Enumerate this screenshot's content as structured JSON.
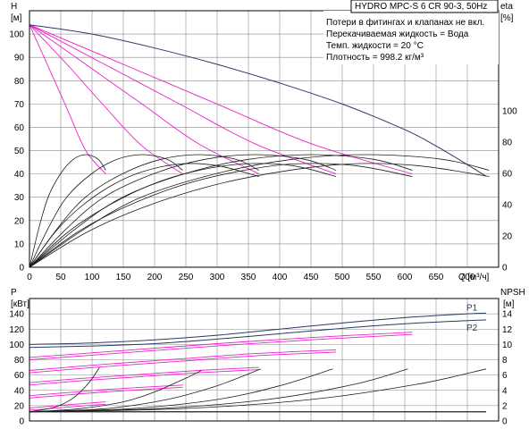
{
  "info": {
    "title": "HYDRO MPC-S 6 CR 90-3, 50Hz",
    "notes": [
      "Потери в фитингах и клапанах не вкл.",
      "Перекачиваемая жидкость = Вода",
      "Темп. жидкости = 20 °C",
      "Плотность = 998.2 кг/м³"
    ]
  },
  "colors": {
    "grid": "#8a8a8a",
    "system_curve": "#2b3a63",
    "stage_curve": "#ee22cc",
    "efficiency": "#1e1e1e",
    "npsh": "#1e1e1e",
    "power": "#2b3a63"
  },
  "chart_data": [
    {
      "type": "line",
      "name": "head-efficiency",
      "xlabel": "Q [м³/ч]",
      "ylabel_left": [
        "H",
        "[м]"
      ],
      "ylabel_right": [
        "eta",
        "[%]"
      ],
      "xlim": [
        0,
        750
      ],
      "ylim_left": [
        0,
        110
      ],
      "ylim_right": [
        0,
        100
      ],
      "x_ticks": [
        0,
        50,
        100,
        150,
        200,
        250,
        300,
        350,
        400,
        450,
        500,
        550,
        600,
        650,
        700
      ],
      "y_ticks_left": [
        0,
        10,
        20,
        30,
        40,
        50,
        60,
        70,
        80,
        90,
        100
      ],
      "y_ticks_right": [
        0,
        20,
        40,
        60,
        80,
        100
      ],
      "grid": true,
      "head_max_curve": {
        "x": [
          0,
          100,
          200,
          300,
          400,
          500,
          600,
          650,
          700,
          730
        ],
        "y": [
          104,
          100,
          94,
          87,
          79,
          70,
          59,
          52,
          44,
          39
        ]
      },
      "head_pump_curves": [
        {
          "x": [
            0,
            30,
            60,
            90,
            122
          ],
          "y": [
            104,
            86,
            68,
            50,
            40
          ]
        },
        {
          "x": [
            0,
            60,
            120,
            180,
            245
          ],
          "y": [
            104,
            87,
            69,
            52,
            40
          ]
        },
        {
          "x": [
            0,
            90,
            180,
            270,
            367
          ],
          "y": [
            104,
            87,
            70,
            53,
            40
          ]
        },
        {
          "x": [
            0,
            120,
            240,
            360,
            490
          ],
          "y": [
            104,
            87,
            70,
            53,
            40
          ]
        },
        {
          "x": [
            0,
            150,
            300,
            450,
            612
          ],
          "y": [
            104,
            87,
            70,
            53,
            40
          ]
        }
      ],
      "efficiency_curves": [
        {
          "x": [
            0,
            15,
            30,
            50,
            70,
            90,
            110,
            122
          ],
          "y": [
            0,
            25,
            45,
            60,
            69,
            72,
            69,
            62
          ]
        },
        {
          "x": [
            0,
            30,
            60,
            100,
            140,
            180,
            220,
            245
          ],
          "y": [
            0,
            25,
            45,
            60,
            69,
            72,
            69,
            62
          ]
        },
        {
          "x": [
            0,
            45,
            90,
            150,
            210,
            270,
            330,
            367
          ],
          "y": [
            0,
            25,
            45,
            60,
            69,
            72,
            69,
            62
          ]
        },
        {
          "x": [
            0,
            60,
            120,
            200,
            280,
            360,
            440,
            490
          ],
          "y": [
            0,
            25,
            45,
            60,
            69,
            72,
            69,
            62
          ]
        },
        {
          "x": [
            0,
            75,
            150,
            250,
            350,
            450,
            550,
            612
          ],
          "y": [
            0,
            25,
            45,
            60,
            69,
            72,
            69,
            62
          ]
        },
        {
          "x": [
            0,
            90,
            180,
            300,
            420,
            540,
            660,
            735
          ],
          "y": [
            0,
            25,
            45,
            60,
            69,
            72,
            69,
            62
          ]
        }
      ],
      "efficiency_curves_low": [
        {
          "x": [
            0,
            40,
            80,
            130,
            180,
            240,
            300,
            367
          ],
          "y": [
            0,
            22,
            38,
            52,
            61,
            66,
            65,
            58
          ]
        },
        {
          "x": [
            0,
            60,
            120,
            190,
            260,
            340,
            420,
            490
          ],
          "y": [
            0,
            22,
            38,
            52,
            61,
            66,
            65,
            58
          ]
        },
        {
          "x": [
            0,
            75,
            150,
            240,
            330,
            420,
            520,
            612
          ],
          "y": [
            0,
            22,
            38,
            52,
            61,
            66,
            65,
            58
          ]
        },
        {
          "x": [
            0,
            90,
            180,
            290,
            400,
            510,
            620,
            735
          ],
          "y": [
            0,
            22,
            38,
            52,
            61,
            66,
            65,
            58
          ]
        }
      ]
    },
    {
      "type": "line",
      "name": "power-npsh",
      "ylabel_left": [
        "P",
        "[кВт]"
      ],
      "ylabel_right": [
        "NPSH",
        "[м]"
      ],
      "xlim": [
        0,
        750
      ],
      "ylim_left": [
        0,
        160
      ],
      "ylim_right": [
        0,
        16
      ],
      "y_ticks_left": [
        0,
        20,
        40,
        60,
        80,
        100,
        120,
        140
      ],
      "y_ticks_right": [
        0,
        2,
        4,
        6,
        8,
        10,
        12,
        14
      ],
      "grid": true,
      "power_series": [
        {
          "name": "P1",
          "x": [
            0,
            100,
            200,
            300,
            400,
            500,
            600,
            700,
            730
          ],
          "y": [
            100,
            102,
            106,
            112,
            120,
            128,
            135,
            140,
            141
          ]
        },
        {
          "name": "P2",
          "x": [
            0,
            100,
            200,
            300,
            400,
            500,
            600,
            700,
            730
          ],
          "y": [
            96,
            98,
            101,
            107,
            114,
            121,
            127,
            131,
            132
          ]
        }
      ],
      "power_stage_curves": [
        {
          "x": [
            0,
            30,
            60,
            90,
            122
          ],
          "y": [
            17,
            19,
            21,
            23,
            25
          ]
        },
        {
          "x": [
            0,
            60,
            120,
            180,
            245
          ],
          "y": [
            33,
            37,
            41,
            44,
            47
          ]
        },
        {
          "x": [
            0,
            90,
            180,
            270,
            367
          ],
          "y": [
            50,
            56,
            61,
            66,
            70
          ]
        },
        {
          "x": [
            0,
            120,
            240,
            360,
            490
          ],
          "y": [
            66,
            74,
            81,
            88,
            93
          ]
        },
        {
          "x": [
            0,
            150,
            300,
            450,
            612
          ],
          "y": [
            83,
            92,
            101,
            109,
            116
          ]
        }
      ],
      "npsh_curves": [
        {
          "x": [
            0,
            40,
            70,
            95,
            112
          ],
          "y": [
            1.2,
            1.8,
            3.0,
            5.0,
            7.0
          ]
        },
        {
          "x": [
            0,
            80,
            150,
            200,
            250,
            275
          ],
          "y": [
            1.2,
            1.6,
            2.5,
            3.8,
            5.6,
            6.6
          ]
        },
        {
          "x": [
            0,
            120,
            220,
            300,
            370
          ],
          "y": [
            1.2,
            1.6,
            2.8,
            4.6,
            6.8
          ]
        },
        {
          "x": [
            0,
            160,
            300,
            400,
            485
          ],
          "y": [
            1.2,
            1.6,
            2.8,
            4.6,
            6.8
          ]
        },
        {
          "x": [
            0,
            200,
            380,
            520,
            605
          ],
          "y": [
            1.2,
            1.6,
            2.8,
            4.8,
            6.8
          ]
        },
        {
          "x": [
            0,
            240,
            450,
            620,
            730
          ],
          "y": [
            1.2,
            1.6,
            2.8,
            4.8,
            6.8
          ]
        }
      ]
    }
  ]
}
